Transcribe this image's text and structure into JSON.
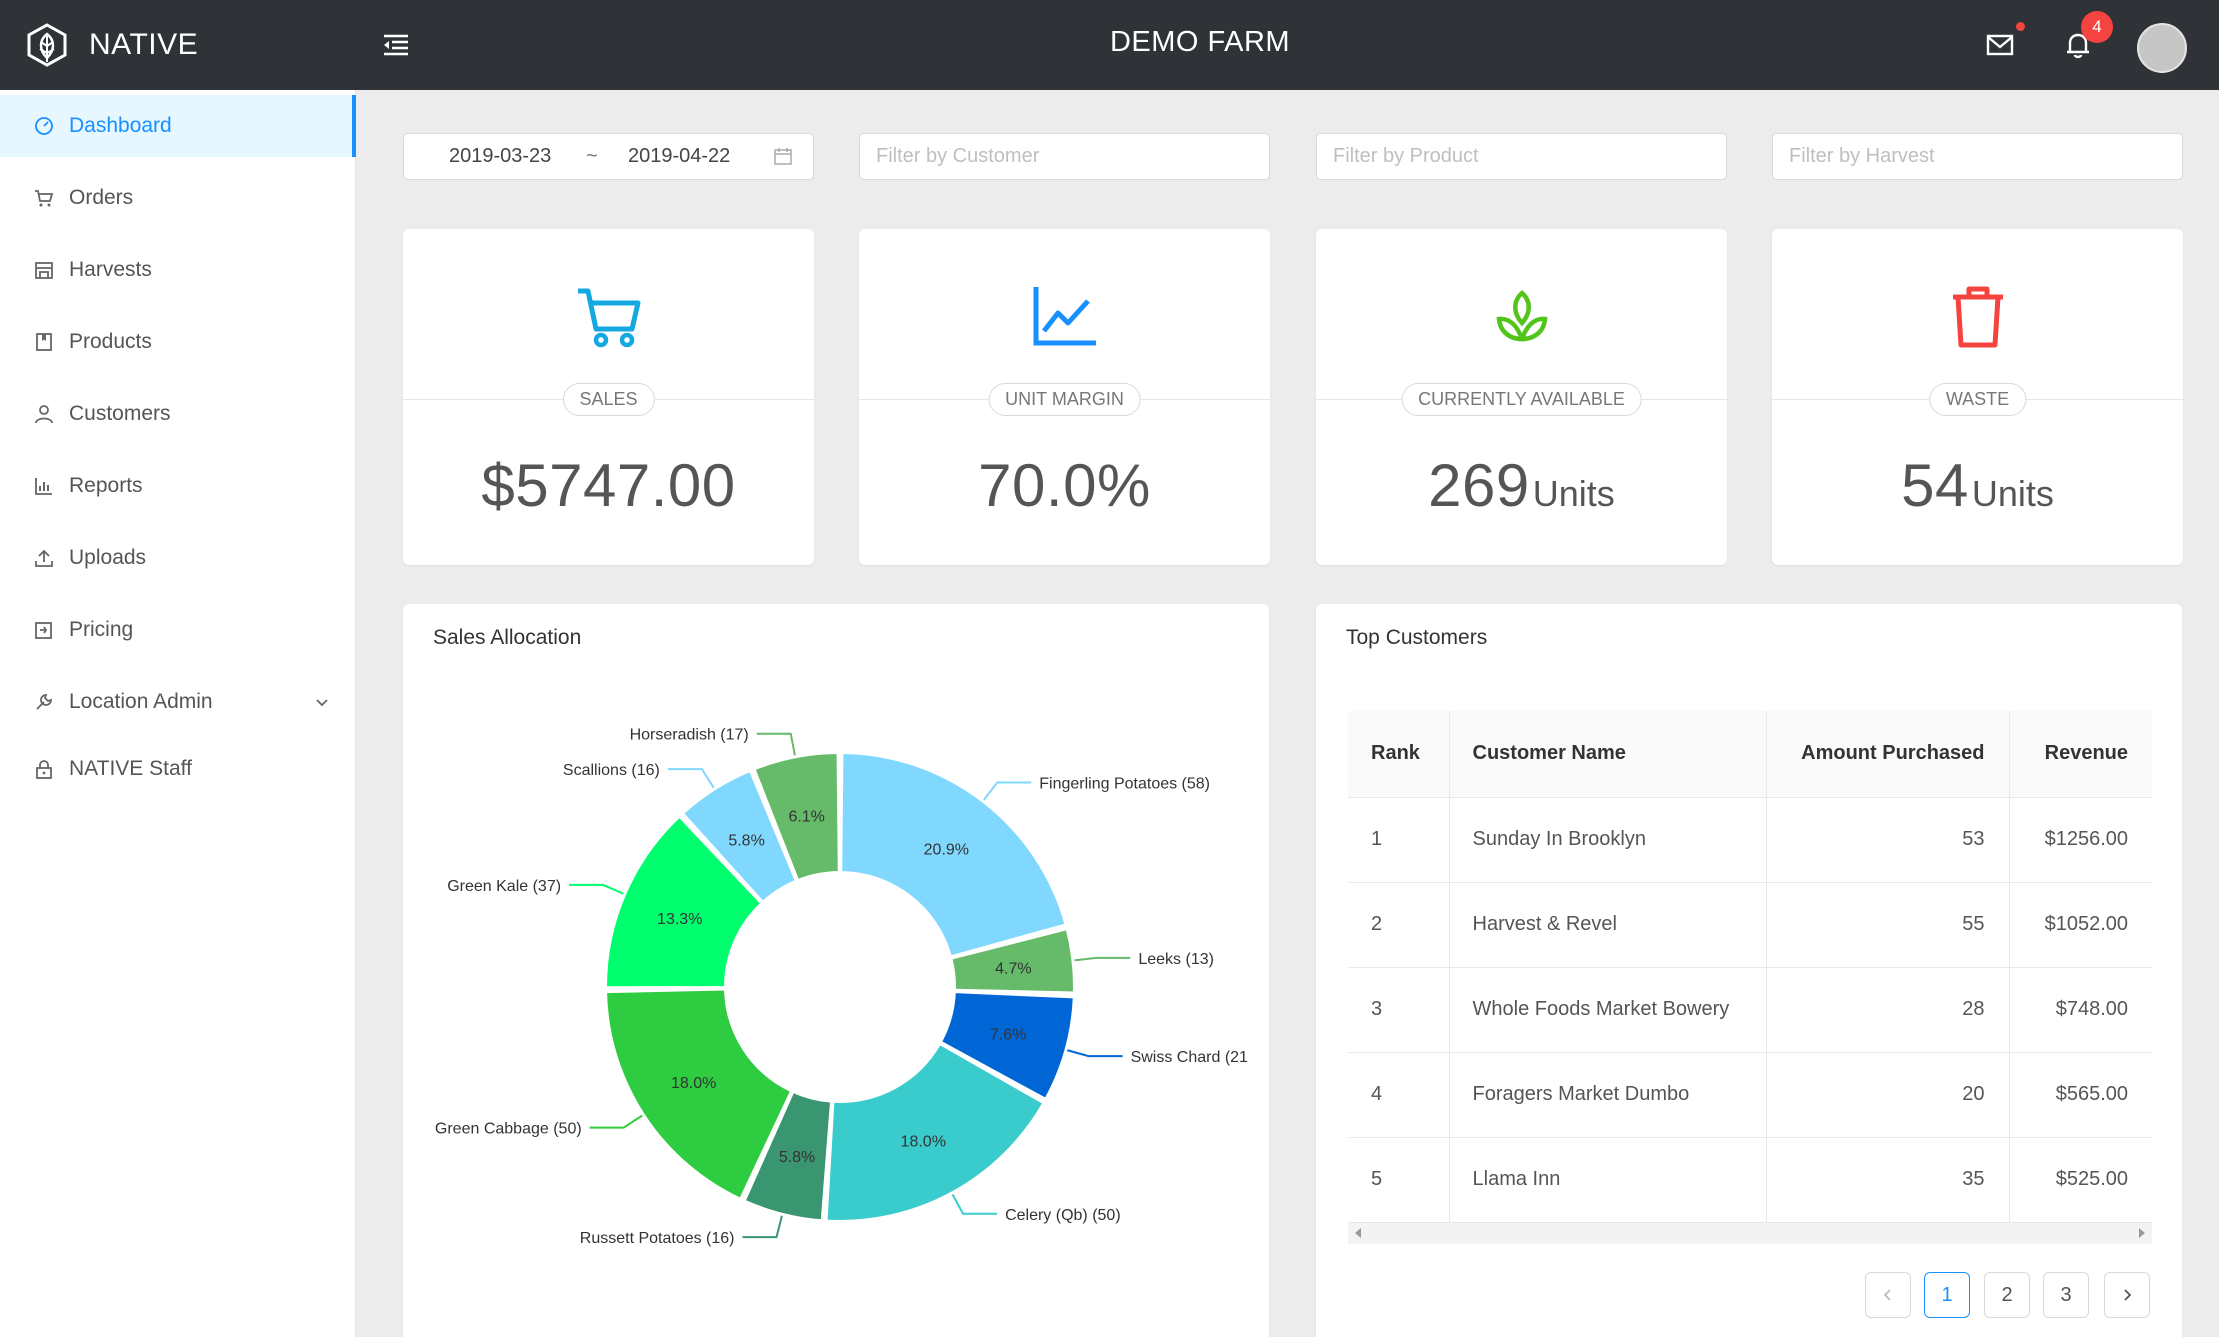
{
  "header": {
    "brand": "NATIVE",
    "farm_title": "DEMO FARM",
    "notification_count": "4"
  },
  "sidebar": {
    "items": [
      {
        "label": "Dashboard",
        "icon": "dashboard-icon",
        "active": true
      },
      {
        "label": "Orders",
        "icon": "cart-icon"
      },
      {
        "label": "Harvests",
        "icon": "storefront-icon"
      },
      {
        "label": "Products",
        "icon": "book-icon"
      },
      {
        "label": "Customers",
        "icon": "user-icon"
      },
      {
        "label": "Reports",
        "icon": "bar-chart-icon"
      },
      {
        "label": "Uploads",
        "icon": "upload-icon"
      },
      {
        "label": "Pricing",
        "icon": "pricing-icon"
      },
      {
        "label": "Location Admin",
        "icon": "wrench-icon",
        "expandable": true
      },
      {
        "label": "NATIVE Staff",
        "icon": "lock-icon"
      }
    ]
  },
  "filters": {
    "date_start": "2019-03-23",
    "date_separator": "~",
    "date_end": "2019-04-22",
    "customer_placeholder": "Filter by Customer",
    "product_placeholder": "Filter by Product",
    "harvest_placeholder": "Filter by Harvest"
  },
  "stats": [
    {
      "label": "SALES",
      "value": "$5747.00",
      "unit": "",
      "icon": "cart-icon",
      "color": "#13a8e0"
    },
    {
      "label": "UNIT MARGIN",
      "value": "70.0%",
      "unit": "",
      "icon": "line-chart-icon",
      "color": "#1890ff"
    },
    {
      "label": "CURRENTLY AVAILABLE",
      "value": "269",
      "unit": "Units",
      "icon": "sprout-icon",
      "color": "#52c41a"
    },
    {
      "label": "WASTE",
      "value": "54",
      "unit": "Units",
      "icon": "trash-icon",
      "color": "#f5443f"
    }
  ],
  "sales_allocation": {
    "title": "Sales Allocation"
  },
  "chart_data": {
    "type": "pie",
    "donut": true,
    "slices": [
      {
        "name": "Fingerling Potatoes",
        "value": 58,
        "percent": "20.9%",
        "label": "Fingerling Potatoes (58)",
        "color": "#80d8ff"
      },
      {
        "name": "Leeks",
        "value": 13,
        "percent": "4.7%",
        "label": "Leeks (13)",
        "color": "#66bb6a"
      },
      {
        "name": "Swiss Chard",
        "value": 21,
        "percent": "7.6%",
        "label": "Swiss Chard (21",
        "color": "#0066d6"
      },
      {
        "name": "Celery (Qb)",
        "value": 50,
        "percent": "18.0%",
        "label": "Celery (Qb) (50)",
        "color": "#3acccc"
      },
      {
        "name": "Russett Potatoes",
        "value": 16,
        "percent": "5.8%",
        "label": "Russett Potatoes (16)",
        "color": "#3a9670"
      },
      {
        "name": "Green Cabbage",
        "value": 50,
        "percent": "18.0%",
        "label": "Green Cabbage (50)",
        "color": "#2ecc40"
      },
      {
        "name": "Green Kale",
        "value": 37,
        "percent": "13.3%",
        "label": "Green Kale (37)",
        "color": "#00ff6e"
      },
      {
        "name": "Scallions",
        "value": 16,
        "percent": "5.8%",
        "label": "Scallions (16)",
        "color": "#80d8ff"
      },
      {
        "name": "Horseradish",
        "value": 17,
        "percent": "6.1%",
        "label": "Horseradish (17)",
        "color": "#66bb6a"
      }
    ]
  },
  "top_customers": {
    "title": "Top Customers",
    "columns": [
      "Rank",
      "Customer Name",
      "Amount Purchased",
      "Revenue"
    ],
    "rows": [
      {
        "rank": "1",
        "name": "Sunday In Brooklyn",
        "amount": "53",
        "revenue": "$1256.00"
      },
      {
        "rank": "2",
        "name": "Harvest & Revel",
        "amount": "55",
        "revenue": "$1052.00"
      },
      {
        "rank": "3",
        "name": "Whole Foods Market Bowery",
        "amount": "28",
        "revenue": "$748.00"
      },
      {
        "rank": "4",
        "name": "Foragers Market Dumbo",
        "amount": "20",
        "revenue": "$565.00"
      },
      {
        "rank": "5",
        "name": "Llama Inn",
        "amount": "35",
        "revenue": "$525.00"
      }
    ],
    "pagination": {
      "pages": [
        "1",
        "2",
        "3"
      ],
      "current": "1"
    }
  }
}
